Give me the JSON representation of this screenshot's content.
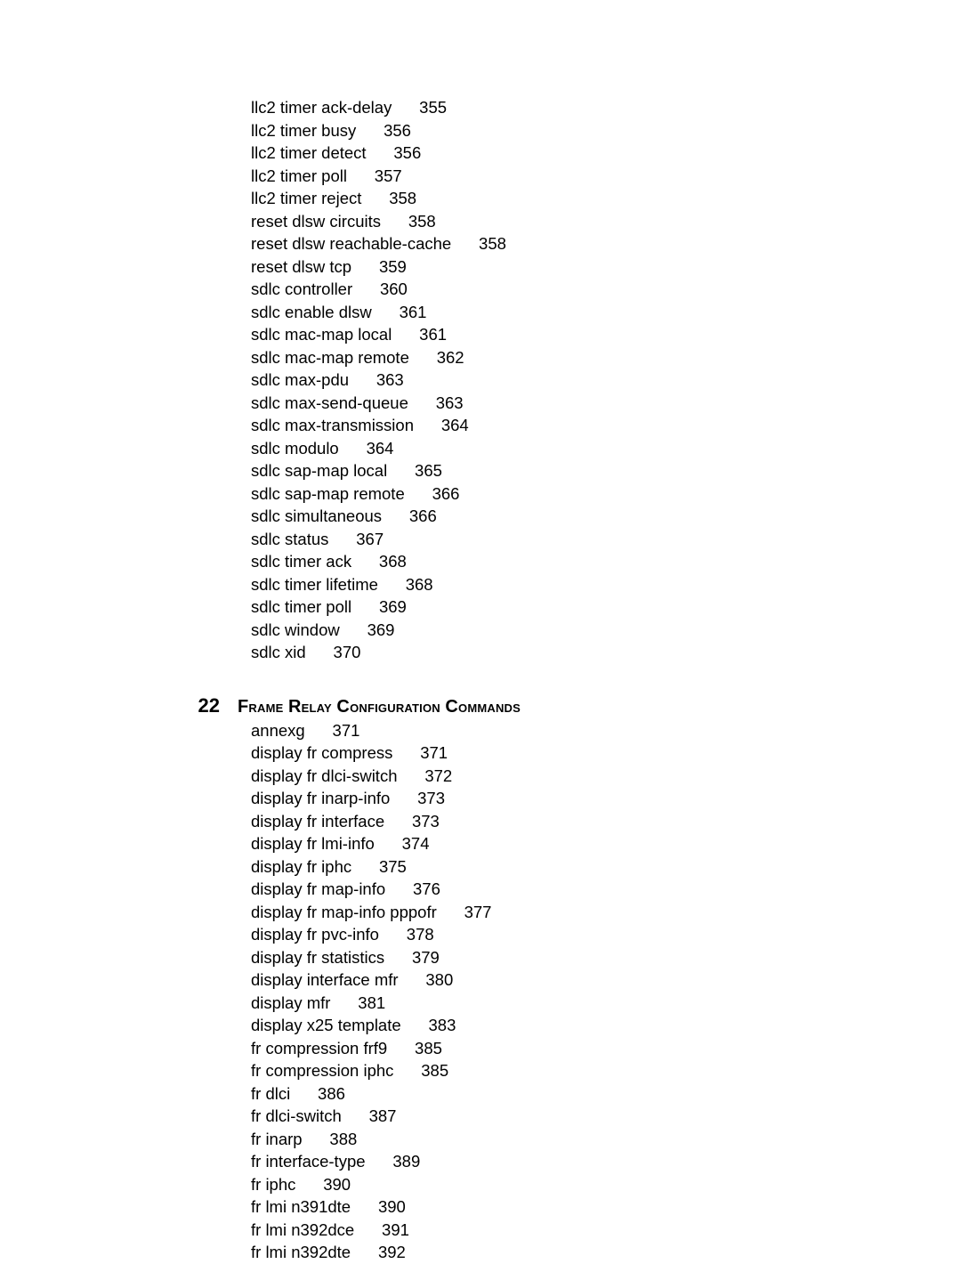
{
  "top_block": {
    "entries": [
      {
        "label": "llc2 timer ack-delay",
        "page": "355"
      },
      {
        "label": "llc2 timer busy",
        "page": "356"
      },
      {
        "label": "llc2 timer detect",
        "page": "356"
      },
      {
        "label": "llc2 timer poll",
        "page": "357"
      },
      {
        "label": "llc2 timer reject",
        "page": "358"
      },
      {
        "label": "reset dlsw circuits",
        "page": "358"
      },
      {
        "label": "reset dlsw reachable-cache",
        "page": "358"
      },
      {
        "label": "reset dlsw tcp",
        "page": "359"
      },
      {
        "label": "sdlc controller",
        "page": "360"
      },
      {
        "label": "sdlc enable dlsw",
        "page": "361"
      },
      {
        "label": "sdlc mac-map local",
        "page": "361"
      },
      {
        "label": "sdlc mac-map remote",
        "page": "362"
      },
      {
        "label": "sdlc max-pdu",
        "page": "363"
      },
      {
        "label": "sdlc max-send-queue",
        "page": "363"
      },
      {
        "label": "sdlc max-transmission",
        "page": "364"
      },
      {
        "label": "sdlc modulo",
        "page": "364"
      },
      {
        "label": "sdlc sap-map local",
        "page": "365"
      },
      {
        "label": "sdlc sap-map remote",
        "page": "366"
      },
      {
        "label": "sdlc simultaneous",
        "page": "366"
      },
      {
        "label": "sdlc status",
        "page": "367"
      },
      {
        "label": "sdlc timer ack",
        "page": "368"
      },
      {
        "label": "sdlc timer lifetime",
        "page": "368"
      },
      {
        "label": "sdlc timer poll",
        "page": "369"
      },
      {
        "label": "sdlc window",
        "page": "369"
      },
      {
        "label": "sdlc xid",
        "page": "370"
      }
    ]
  },
  "section": {
    "number": "22",
    "title_parts": [
      "F",
      "rame ",
      "R",
      "elay ",
      "C",
      "onfiguration ",
      "C",
      "ommands"
    ],
    "entries": [
      {
        "label": "annexg",
        "page": "371"
      },
      {
        "label": "display fr compress",
        "page": "371"
      },
      {
        "label": "display fr dlci-switch",
        "page": "372"
      },
      {
        "label": "display fr inarp-info",
        "page": "373"
      },
      {
        "label": "display fr interface",
        "page": "373"
      },
      {
        "label": "display fr lmi-info",
        "page": "374"
      },
      {
        "label": "display fr iphc",
        "page": "375"
      },
      {
        "label": "display fr map-info",
        "page": "376"
      },
      {
        "label": "display fr map-info pppofr",
        "page": "377"
      },
      {
        "label": "display fr pvc-info",
        "page": "378"
      },
      {
        "label": "display fr statistics",
        "page": "379"
      },
      {
        "label": "display interface mfr",
        "page": "380"
      },
      {
        "label": "display mfr",
        "page": "381"
      },
      {
        "label": "display x25 template",
        "page": "383"
      },
      {
        "label": "fr compression frf9",
        "page": "385"
      },
      {
        "label": "fr compression iphc",
        "page": "385"
      },
      {
        "label": "fr dlci",
        "page": "386"
      },
      {
        "label": "fr dlci-switch",
        "page": "387"
      },
      {
        "label": "fr inarp",
        "page": "388"
      },
      {
        "label": "fr interface-type",
        "page": "389"
      },
      {
        "label": "fr iphc",
        "page": "390"
      },
      {
        "label": "fr lmi n391dte",
        "page": "390"
      },
      {
        "label": "fr lmi n392dce",
        "page": "391"
      },
      {
        "label": "fr lmi n392dte",
        "page": "392"
      }
    ]
  },
  "gap": "      "
}
